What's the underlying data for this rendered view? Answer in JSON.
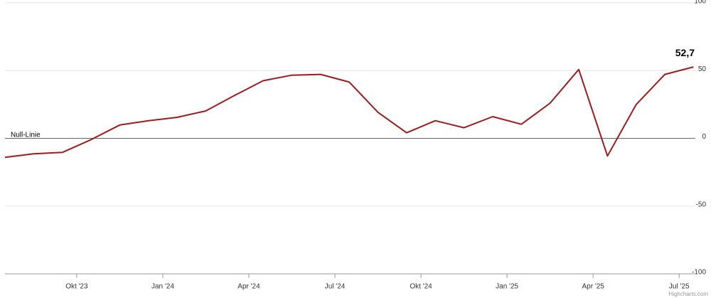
{
  "chart_data": {
    "type": "line",
    "categories": [
      null,
      null,
      null,
      "Okt '23",
      null,
      null,
      "Jan '24",
      null,
      null,
      "Apr '24",
      null,
      null,
      "Jul '24",
      null,
      null,
      "Okt '24",
      null,
      null,
      "Jan '25",
      null,
      null,
      "Apr '25",
      null,
      null,
      "Jul '25"
    ],
    "series": [
      {
        "color": "#9b1c1c",
        "values": [
          -14,
          -11.4,
          -10.4,
          -1,
          9.8,
          13,
          15.5,
          20.2,
          31.6,
          42.5,
          46.6,
          47.2,
          41.5,
          19.2,
          4.1,
          13,
          7.8,
          16,
          10.4,
          26,
          50.8,
          -13,
          24.9,
          47.2,
          52.7
        ],
        "value_labels": [
          null,
          null,
          null,
          null,
          null,
          null,
          null,
          null,
          null,
          null,
          null,
          null,
          null,
          null,
          null,
          null,
          null,
          null,
          null,
          null,
          null,
          null,
          null,
          null,
          "52,7"
        ]
      }
    ],
    "ylim": [
      -100,
      100
    ],
    "yticks": [
      100,
      50,
      0,
      -50,
      -100
    ],
    "grid": true,
    "annotation": "Null-Linie",
    "credit": "Highcharts.com"
  }
}
